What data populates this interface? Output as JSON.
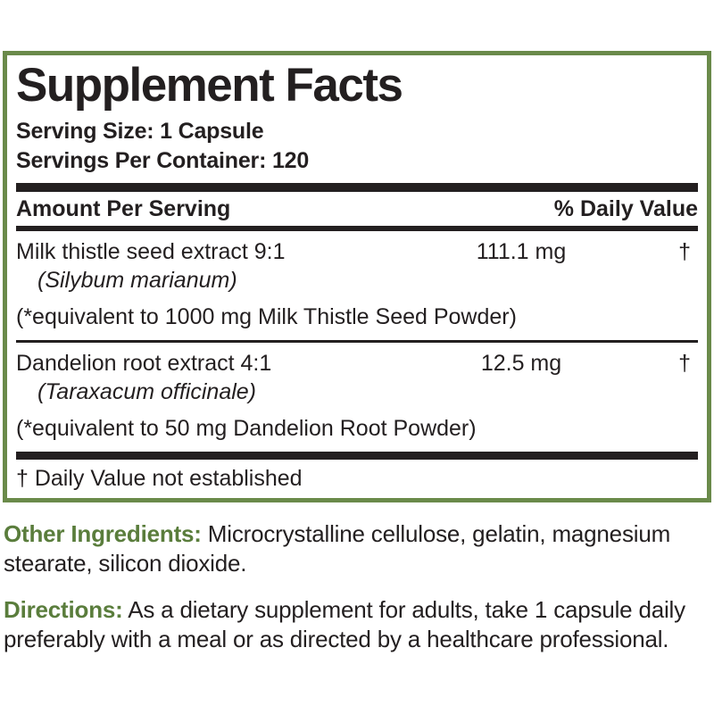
{
  "colors": {
    "border_green": "#6A8A4A",
    "label_green": "#5A7D3C",
    "ink": "#231F20"
  },
  "panel": {
    "title": "Supplement Facts",
    "serving_size": "Serving Size: 1 Capsule",
    "servings_per_container": "Servings Per Container: 120",
    "header": {
      "amount": "Amount Per Serving",
      "daily_value": "% Daily Value"
    },
    "rows": [
      {
        "name": "Milk thistle seed extract 9:1",
        "latin": "(Silybum marianum)",
        "equivalent": "(*equivalent to 1000 mg Milk Thistle Seed Powder)",
        "amount": "111.1 mg",
        "dv": "†"
      },
      {
        "name": "Dandelion root extract 4:1",
        "latin": "(Taraxacum officinale)",
        "equivalent": "(*equivalent to 50 mg Dandelion Root Powder)",
        "amount": "12.5 mg",
        "dv": "†"
      }
    ],
    "footnote": "† Daily Value not established"
  },
  "other_ingredients": {
    "label": "Other Ingredients:",
    "text": "Microcrystalline cellulose, gelatin, magnesium stearate, silicon dioxide."
  },
  "directions": {
    "label": "Directions:",
    "text": "As a dietary supplement for adults, take 1 capsule daily preferably with a meal or as directed by a healthcare professional."
  }
}
